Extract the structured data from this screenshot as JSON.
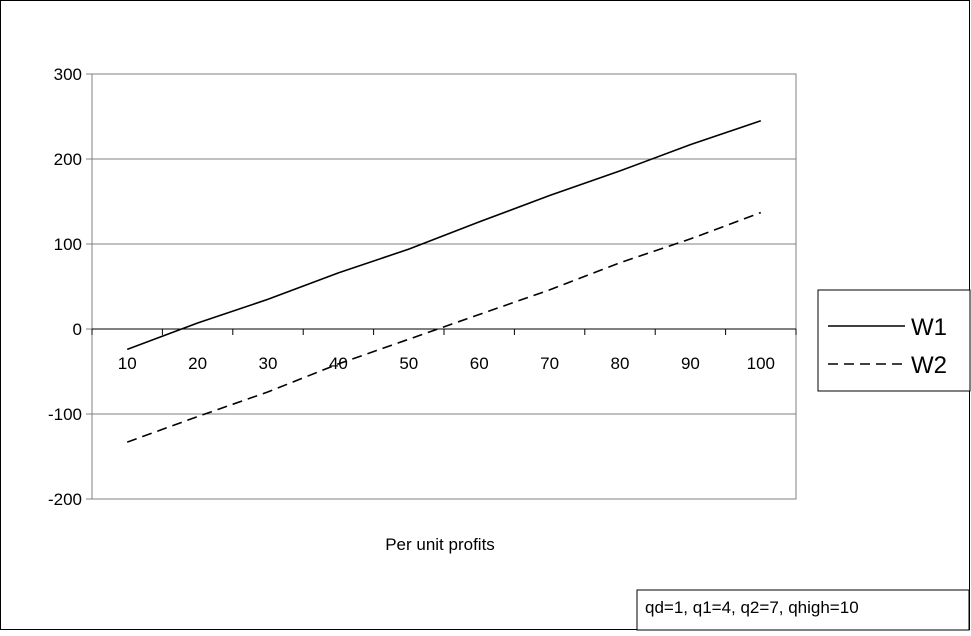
{
  "chart_data": {
    "type": "line",
    "title": "",
    "xlabel": "Per unit profits",
    "ylabel": "",
    "categories": [
      "10",
      "20",
      "30",
      "40",
      "50",
      "60",
      "70",
      "80",
      "90",
      "100"
    ],
    "ylim": [
      -200,
      300
    ],
    "yticks": [
      -200,
      -100,
      0,
      100,
      200,
      300
    ],
    "grid": true,
    "legend": "right",
    "series": [
      {
        "name": "W1",
        "style": "solid",
        "color": "#000000",
        "values": [
          -24,
          7,
          35,
          66,
          94,
          126,
          157,
          186,
          217,
          245
        ]
      },
      {
        "name": "W2",
        "style": "dashed",
        "color": "#000000",
        "values": [
          -133,
          -103,
          -74,
          -41,
          -12,
          17,
          46,
          78,
          106,
          137
        ]
      }
    ],
    "annotation": "qd=1, q1=4, q2=7, qhigh=10"
  }
}
